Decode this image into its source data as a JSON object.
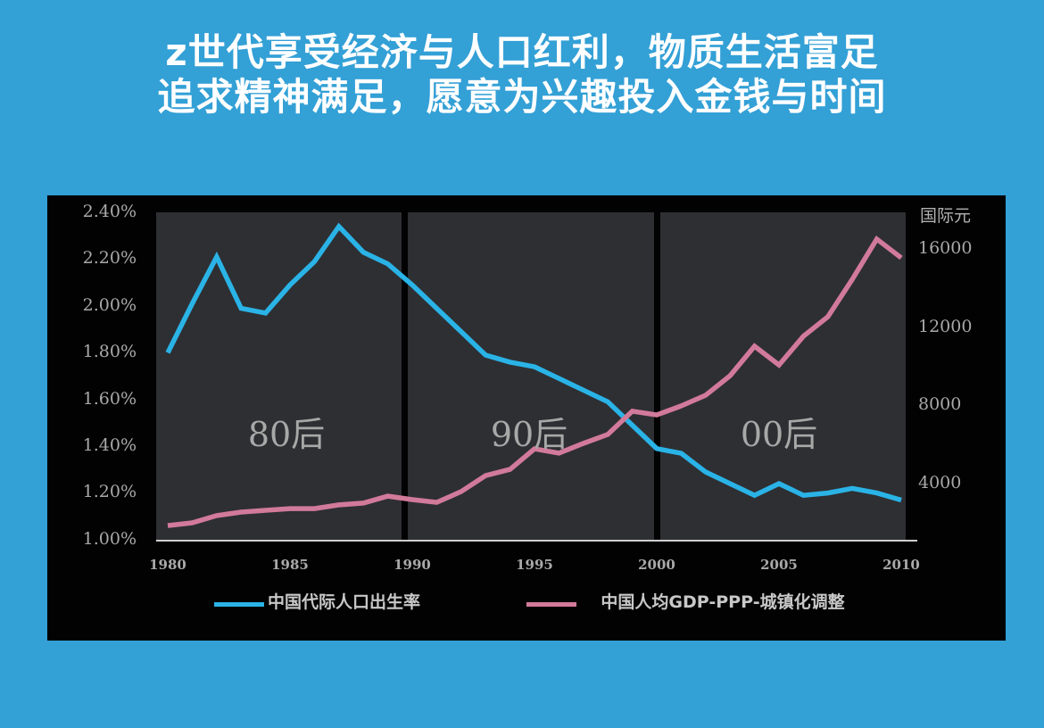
{
  "page": {
    "title_lines": [
      "z世代享受经济与人口红利，物质生活富足",
      "追求精神满足，愿意为兴趣投入金钱与时间"
    ],
    "background_color": "#33a0d6"
  },
  "chart": {
    "left_axis_ticks": [
      "2.40%",
      "2.20%",
      "2.00%",
      "1.80%",
      "1.60%",
      "1.40%",
      "1.20%",
      "1.00%"
    ],
    "right_axis_unit": "国际元",
    "right_axis_ticks": [
      "16000",
      "12000",
      "8000",
      "4000"
    ],
    "x_ticks": [
      "1980",
      "1985",
      "1990",
      "1995",
      "2000",
      "2005",
      "2010"
    ],
    "eras": [
      {
        "label": "80后"
      },
      {
        "label": "90后"
      },
      {
        "label": "00后"
      }
    ],
    "legend": [
      {
        "label": "中国代际人口出生率",
        "color": "#2ab3e6"
      },
      {
        "label": "中国人均GDP-PPP-城镇化调整",
        "color": "#d27a9a"
      }
    ],
    "colors": {
      "frame": "#020202",
      "era_band": "#2e2f33",
      "birth_rate": "#2ab3e6",
      "gdp": "#d27a9a",
      "axis": "#cfcfcf"
    }
  },
  "chart_data": {
    "type": "line",
    "title": "",
    "x": [
      1980,
      1981,
      1982,
      1983,
      1984,
      1985,
      1986,
      1987,
      1988,
      1989,
      1990,
      1991,
      1992,
      1993,
      1994,
      1995,
      1996,
      1997,
      1998,
      1999,
      2000,
      2001,
      2002,
      2003,
      2004,
      2005,
      2006,
      2007,
      2008,
      2009,
      2010
    ],
    "series": [
      {
        "name": "中国代际人口出生率",
        "axis": "left",
        "unit": "%",
        "values": [
          1.8,
          2.01,
          2.21,
          1.99,
          1.97,
          2.09,
          2.19,
          2.34,
          2.23,
          2.18,
          2.09,
          1.99,
          1.89,
          1.79,
          1.76,
          1.74,
          1.69,
          1.64,
          1.59,
          1.49,
          1.39,
          1.37,
          1.29,
          1.24,
          1.19,
          1.24,
          1.19,
          1.2,
          1.22,
          1.2,
          1.17
        ]
      },
      {
        "name": "中国人均GDP-PPP-城镇化调整",
        "axis": "right",
        "unit": "国际元",
        "values": [
          1870,
          2010,
          2380,
          2560,
          2650,
          2740,
          2740,
          2930,
          3020,
          3380,
          3200,
          3060,
          3610,
          4430,
          4750,
          5800,
          5580,
          6080,
          6540,
          7730,
          7540,
          8000,
          8550,
          9550,
          11060,
          10100,
          11570,
          12570,
          14490,
          16550,
          15590
        ]
      }
    ],
    "xlabel": "",
    "ylabel": "",
    "ylabel_right": "国际元",
    "ylim": [
      1.0,
      2.4
    ],
    "ylim_right": [
      0,
      17000
    ],
    "annotations": [
      "80后",
      "90后",
      "00后"
    ],
    "grid": false,
    "legend_position": "bottom"
  }
}
